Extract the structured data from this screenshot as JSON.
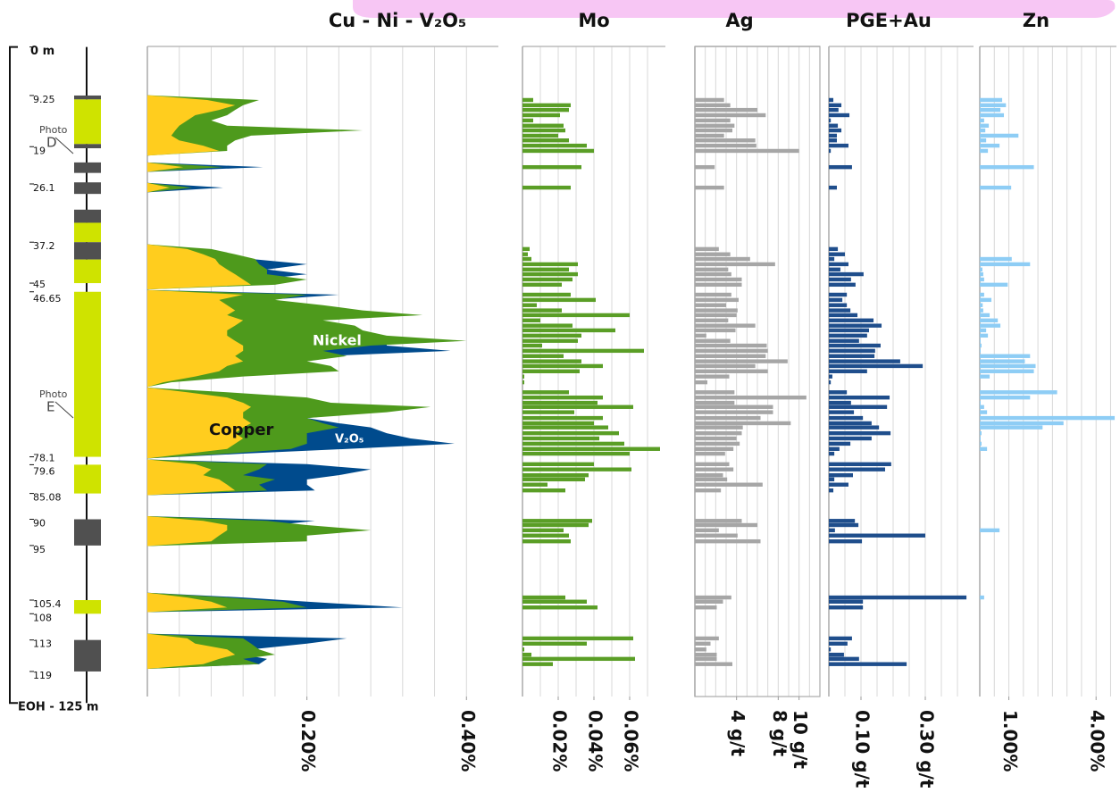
{
  "chart_data": {
    "type": "well_log",
    "ylim": [
      0,
      125
    ],
    "depth_ticks": [
      {
        "value": 0,
        "label": "0 m"
      },
      9.25,
      19,
      26.1,
      37.2,
      45,
      46.65,
      78.1,
      79.6,
      85.08,
      90,
      95,
      105.4,
      108,
      113,
      119,
      {
        "value": 125,
        "label": "EOH - 125 m"
      }
    ],
    "lithology": [
      {
        "from": 9.25,
        "to": 10,
        "color": "#505050"
      },
      {
        "from": 10,
        "to": 18.5,
        "color": "#cfe300"
      },
      {
        "from": 18.5,
        "to": 19.3,
        "color": "#505050"
      },
      {
        "from": 22,
        "to": 24,
        "color": "#505050"
      },
      {
        "from": 25.8,
        "to": 28,
        "color": "#505050"
      },
      {
        "from": 31,
        "to": 33.5,
        "color": "#505050"
      },
      {
        "from": 33.5,
        "to": 37.2,
        "color": "#cfe300"
      },
      {
        "from": 37.2,
        "to": 40.5,
        "color": "#505050"
      },
      {
        "from": 40.5,
        "to": 45,
        "color": "#cfe300"
      },
      {
        "from": 46.65,
        "to": 78.1,
        "color": "#cfe300"
      },
      {
        "from": 79.6,
        "to": 85.08,
        "color": "#cfe300"
      },
      {
        "from": 90,
        "to": 95,
        "color": "#505050"
      },
      {
        "from": 105.4,
        "to": 108,
        "color": "#cfe300"
      },
      {
        "from": 113,
        "to": 119,
        "color": "#505050"
      }
    ],
    "photos": [
      {
        "label": "Photo",
        "name": "D"
      },
      {
        "label": "Photo",
        "name": "E"
      }
    ],
    "depths": [
      10.1,
      11.1,
      12,
      13,
      14,
      15,
      15.9,
      16.9,
      17.8,
      18.8,
      19.8,
      22.9,
      26.8,
      38.5,
      39.5,
      40.4,
      41.4,
      42.4,
      43.3,
      44.3,
      45.3,
      47.2,
      48.2,
      49.2,
      50.2,
      51.1,
      52.1,
      53.1,
      54,
      55,
      56,
      56.9,
      57.9,
      58.9,
      59.9,
      60.8,
      61.8,
      62.8,
      63.9,
      65.8,
      66.8,
      67.8,
      68.6,
      69.6,
      70.7,
      71.7,
      72.5,
      73.6,
      74.6,
      75.6,
      76.6,
      77.5,
      79.5,
      80.5,
      81.6,
      82.4,
      83.4,
      84.5,
      90.3,
      91.1,
      92.1,
      93.1,
      94.2,
      104.9,
      105.7,
      106.8,
      112.7,
      113.7,
      114.8,
      115.8,
      116.6,
      117.6
    ],
    "panels": [
      {
        "type": "area",
        "title": "Cu - Ni - V₂O₅",
        "xlim": [
          0,
          0.44
        ],
        "xticks": [
          {
            "value": 0.2,
            "label": "0.20%"
          },
          {
            "value": 0.4,
            "label": "0.40%"
          }
        ],
        "xgrid": [
          0.04,
          0.08,
          0.12,
          0.16,
          0.2,
          0.24,
          0.28,
          0.32,
          0.36,
          0.4
        ],
        "series": [
          {
            "name": "V₂O₅",
            "color": "#004b8d",
            "values": [
              0.05,
              0.06,
              0.05,
              0.04,
              0.04,
              0.05,
              0.08,
              0.05,
              0.05,
              0.05,
              0.06,
              0.145,
              0.095,
              0.06,
              0.09,
              0.13,
              0.2,
              0.15,
              0.2,
              0.14,
              0.12,
              0.24,
              0.15,
              0.2,
              0.22,
              0.25,
              0.2,
              0.22,
              0.24,
              0.26,
              0.3,
              0.3,
              0.38,
              0.22,
              0.18,
              0.2,
              0.2,
              0.1,
              0.02,
              0.08,
              0.15,
              0.2,
              0.25,
              0.28,
              0.2,
              0.24,
              0.28,
              0.3,
              0.33,
              0.385,
              0.25,
              0.12,
              0.2,
              0.28,
              0.24,
              0.2,
              0.2,
              0.21,
              0.21,
              0.16,
              0.15,
              0.15,
              0.15,
              0.12,
              0.2,
              0.32,
              0.25,
              0.2,
              0.13,
              0.12,
              0.15,
              0.14
            ]
          },
          {
            "name": "Nickel",
            "color": "#4e9a1c",
            "values": [
              0.14,
              0.12,
              0.11,
              0.1,
              0.08,
              0.1,
              0.27,
              0.13,
              0.11,
              0.1,
              0.1,
              0.095,
              0.056,
              0.08,
              0.11,
              0.135,
              0.14,
              0.15,
              0.15,
              0.2,
              0.16,
              0.2,
              0.16,
              0.22,
              0.27,
              0.345,
              0.22,
              0.26,
              0.27,
              0.3,
              0.4,
              0.28,
              0.22,
              0.25,
              0.2,
              0.23,
              0.24,
              0.12,
              0.03,
              0.1,
              0.2,
              0.23,
              0.355,
              0.3,
              0.2,
              0.22,
              0.24,
              0.2,
              0.2,
              0.2,
              0.18,
              0.1,
              0.15,
              0.14,
              0.12,
              0.16,
              0.14,
              0.15,
              0.15,
              0.2,
              0.28,
              0.2,
              0.2,
              0.1,
              0.17,
              0.2,
              0.12,
              0.13,
              0.14,
              0.16,
              0.12,
              0.14
            ]
          },
          {
            "name": "Copper",
            "color": "#ffcd1e",
            "values": [
              0.075,
              0.11,
              0.09,
              0.06,
              0.05,
              0.04,
              0.035,
              0.03,
              0.04,
              0.07,
              0.09,
              0.045,
              0.028,
              0.05,
              0.07,
              0.085,
              0.09,
              0.1,
              0.11,
              0.12,
              0.13,
              0.12,
              0.09,
              0.1,
              0.11,
              0.1,
              0.12,
              0.11,
              0.1,
              0.1,
              0.11,
              0.12,
              0.12,
              0.11,
              0.12,
              0.1,
              0.09,
              0.06,
              0.02,
              0.05,
              0.1,
              0.12,
              0.13,
              0.12,
              0.12,
              0.13,
              0.12,
              0.11,
              0.12,
              0.11,
              0.1,
              0.05,
              0.06,
              0.08,
              0.07,
              0.09,
              0.1,
              0.11,
              0.07,
              0.1,
              0.1,
              0.09,
              0.08,
              0.05,
              0.08,
              0.1,
              0.05,
              0.06,
              0.1,
              0.11,
              0.09,
              0.07
            ]
          }
        ]
      },
      {
        "type": "bar",
        "title": "Mo",
        "color": "#5a9e26",
        "xlim": [
          0,
          0.08
        ],
        "xticks": [
          {
            "value": 0.02,
            "label": "0.02%"
          },
          {
            "value": 0.04,
            "label": "0.04%"
          },
          {
            "value": 0.06,
            "label": "0.06%"
          }
        ],
        "xgrid": [
          0.01,
          0.02,
          0.03,
          0.04,
          0.05,
          0.06,
          0.07
        ],
        "values": [
          0.006,
          0.027,
          0.026,
          0.021,
          0.006,
          0.023,
          0.024,
          0.02,
          0.026,
          0.036,
          0.04,
          0.033,
          0.027,
          0.004,
          0.003,
          0.005,
          0.031,
          0.026,
          0.031,
          0.028,
          0.022,
          0.027,
          0.041,
          0.008,
          0.022,
          0.06,
          0.01,
          0.028,
          0.052,
          0.033,
          0.031,
          0.011,
          0.068,
          0.023,
          0.033,
          0.045,
          0.032,
          0.001,
          0.001,
          0.026,
          0.045,
          0.042,
          0.062,
          0.029,
          0.045,
          0.04,
          0.048,
          0.054,
          0.043,
          0.057,
          0.077,
          0.06,
          0.04,
          0.061,
          0.037,
          0.035,
          0.014,
          0.024,
          0.039,
          0.037,
          0.023,
          0.026,
          0.027,
          0.024,
          0.036,
          0.042,
          0.062,
          0.036,
          0.001,
          0.005,
          0.063,
          0.017
        ]
      },
      {
        "type": "bar",
        "title": "Ag",
        "color": "#a6a6a6",
        "xlim": [
          0,
          12
        ],
        "xticks": [
          {
            "value": 4,
            "label": "4 g/t"
          },
          {
            "value": 8,
            "label": "8 g/t"
          },
          {
            "value": 10,
            "label": "10 g/t"
          }
        ],
        "xgrid": [
          1,
          2,
          3,
          4,
          5,
          6,
          7,
          8,
          9,
          10,
          11
        ],
        "values": [
          2.8,
          3.4,
          6,
          6.8,
          3.4,
          3.8,
          3.6,
          2.8,
          5.8,
          5.9,
          10,
          1.9,
          2.8,
          2.3,
          3.4,
          5.3,
          7.7,
          3.2,
          3.5,
          4.5,
          4.5,
          3.5,
          4.2,
          3,
          4.1,
          4,
          3.2,
          5.8,
          3.9,
          1.1,
          3.4,
          6.9,
          7,
          6.8,
          8.9,
          5.8,
          7,
          3.3,
          1.2,
          3.8,
          10.7,
          3.8,
          7.5,
          7.5,
          6.3,
          9.2,
          4.6,
          4.5,
          4,
          4.3,
          3.7,
          2.9,
          3.3,
          3.7,
          2.7,
          3.1,
          6.5,
          2.5,
          4.5,
          6,
          2.3,
          4.1,
          6.3,
          3.5,
          2.7,
          2.1,
          2.3,
          1.5,
          1.1,
          2.1,
          2.1,
          3.6
        ]
      },
      {
        "type": "bar",
        "title": "PGE+Au",
        "color": "#1f4e8c",
        "xlim": [
          0,
          0.45
        ],
        "xticks": [
          {
            "value": 0.1,
            "label": "0.10 g/t"
          },
          {
            "value": 0.3,
            "label": "0.30 g/t"
          }
        ],
        "xgrid": [
          0.05,
          0.1,
          0.15,
          0.2,
          0.25,
          0.3,
          0.35,
          0.4
        ],
        "values": [
          0.014,
          0.039,
          0.03,
          0.064,
          0.006,
          0.028,
          0.039,
          0.025,
          0.025,
          0.061,
          0.006,
          0.072,
          0.025,
          0.028,
          0.05,
          0.017,
          0.061,
          0.036,
          0.108,
          0.069,
          0.083,
          0.056,
          0.042,
          0.056,
          0.067,
          0.089,
          0.139,
          0.164,
          0.125,
          0.119,
          0.094,
          0.161,
          0.144,
          0.142,
          0.222,
          0.292,
          0.119,
          0.011,
          0.006,
          0.056,
          0.189,
          0.069,
          0.181,
          0.078,
          0.106,
          0.133,
          0.156,
          0.192,
          0.133,
          0.067,
          0.033,
          0.017,
          0.194,
          0.175,
          0.075,
          0.017,
          0.061,
          0.014,
          0.081,
          0.092,
          0.019,
          0.3,
          0.103,
          0.428,
          0.106,
          0.106,
          0.072,
          0.058,
          0.006,
          0.047,
          0.094,
          0.242
        ]
      },
      {
        "type": "bar",
        "title": "Zn",
        "color": "#8ecdf5",
        "xlim": [
          0,
          4.7
        ],
        "xticks": [
          {
            "value": 1,
            "label": "1.00%"
          },
          {
            "value": 4,
            "label": "4.00%"
          }
        ],
        "xgrid": [
          0.5,
          1,
          1.5,
          2,
          2.5,
          3,
          3.5,
          4,
          4.5
        ],
        "values": [
          0.77,
          0.9,
          0.71,
          0.83,
          0.15,
          0.31,
          0.19,
          1.33,
          0.22,
          0.68,
          0.28,
          1.86,
          1.08,
          null,
          null,
          1.1,
          1.73,
          0.09,
          0.12,
          0.15,
          0.96,
          0.15,
          0.4,
          0.1,
          0.12,
          0.34,
          0.62,
          0.71,
          0.22,
          0.28,
          0.03,
          0.06,
          0.03,
          1.73,
          1.55,
          1.92,
          1.86,
          0.34,
          null,
          2.66,
          1.73,
          0.03,
          0.15,
          0.25,
          4.64,
          2.88,
          2.16,
          0.06,
          0.03,
          0.06,
          0.25,
          null,
          null,
          null,
          null,
          null,
          null,
          null,
          null,
          null,
          0.68,
          null,
          null,
          0.15,
          null,
          null,
          null,
          null,
          null,
          null,
          null,
          null
        ]
      }
    ]
  }
}
